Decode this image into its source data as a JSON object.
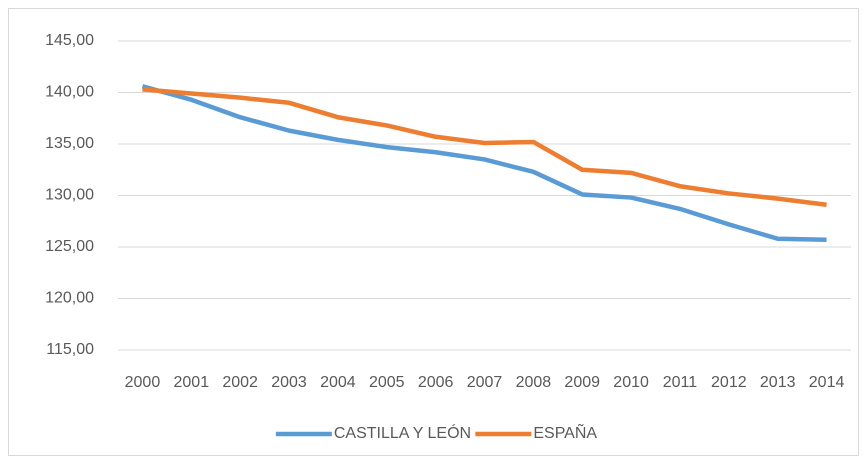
{
  "chart_data": {
    "type": "line",
    "categories": [
      "2000",
      "2001",
      "2002",
      "2003",
      "2004",
      "2005",
      "2006",
      "2007",
      "2008",
      "2009",
      "2010",
      "2011",
      "2012",
      "2013",
      "2014"
    ],
    "series": [
      {
        "name": "CASTILLA Y LEÓN",
        "color": "#5b9bd5",
        "values": [
          140.6,
          139.3,
          137.6,
          136.3,
          135.4,
          134.7,
          134.2,
          133.5,
          132.3,
          130.1,
          129.8,
          128.7,
          127.2,
          125.8,
          125.7
        ]
      },
      {
        "name": "ESPAÑA",
        "color": "#ed7d31",
        "values": [
          140.3,
          139.9,
          139.5,
          139.0,
          137.6,
          136.8,
          135.7,
          135.1,
          135.2,
          132.5,
          132.2,
          130.9,
          130.2,
          129.7,
          129.1
        ]
      }
    ],
    "ylim": [
      115,
      145
    ],
    "yticks": [
      {
        "value": 115,
        "label": "115,00"
      },
      {
        "value": 120,
        "label": "120,00"
      },
      {
        "value": 125,
        "label": "125,00"
      },
      {
        "value": 130,
        "label": "130,00"
      },
      {
        "value": 135,
        "label": "135,00"
      },
      {
        "value": 140,
        "label": "140,00"
      },
      {
        "value": 145,
        "label": "145,00"
      }
    ],
    "grid": true,
    "legend": "bottom"
  }
}
